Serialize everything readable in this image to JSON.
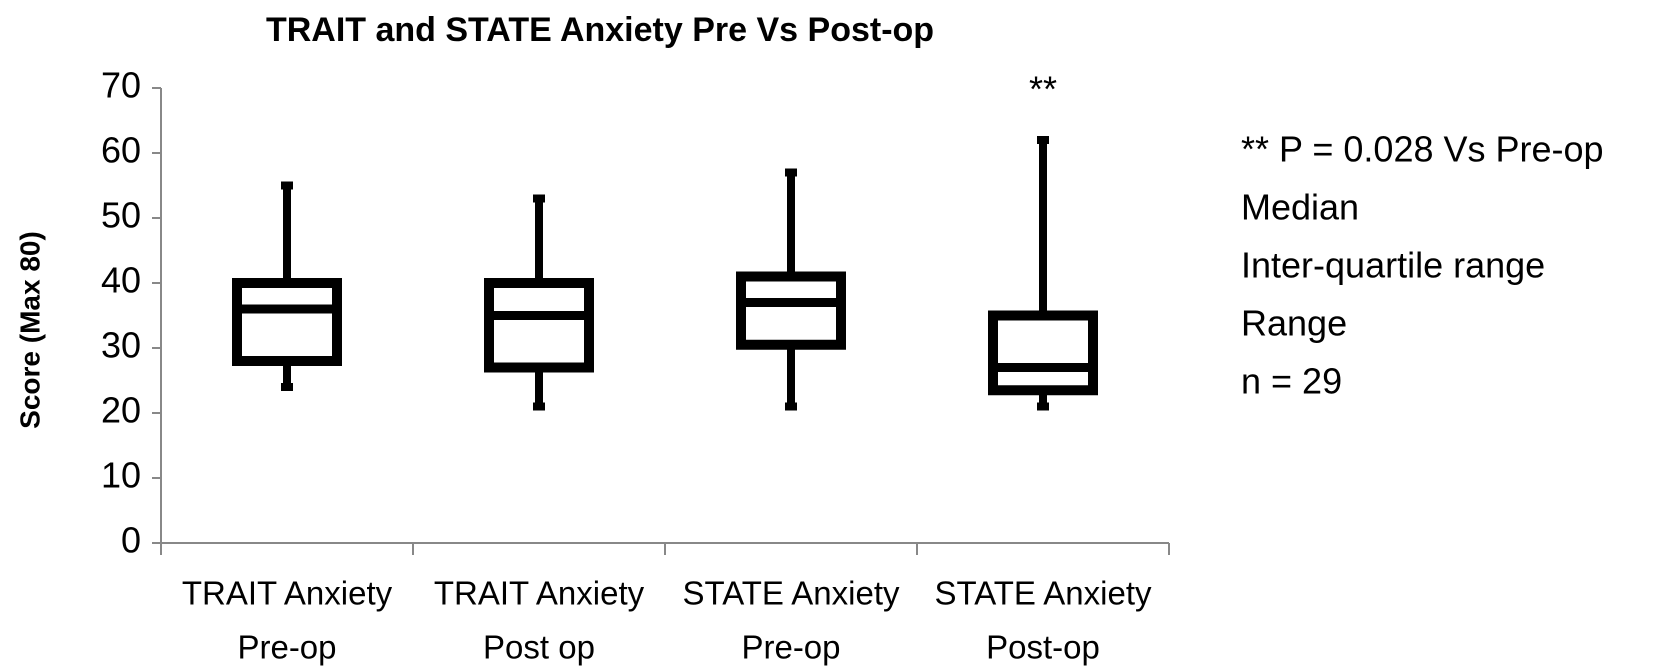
{
  "chart_data": {
    "type": "box",
    "title": "TRAIT and STATE Anxiety Pre Vs Post-op",
    "y_label": "Score (Max 80)",
    "categories": [
      [
        "TRAIT Anxiety",
        "Pre-op"
      ],
      [
        "TRAIT Anxiety",
        "Post op"
      ],
      [
        "STATE Anxiety",
        "Pre-op"
      ],
      [
        "STATE Anxiety",
        "Post-op"
      ]
    ],
    "series": [
      {
        "name": "Score",
        "color": "#000000",
        "min": [
          24,
          21,
          21,
          21
        ],
        "q1": [
          28,
          27,
          30.5,
          23.5
        ],
        "median": [
          36,
          35,
          37,
          27
        ],
        "q3": [
          40,
          40,
          41,
          35
        ],
        "max": [
          55,
          53,
          57,
          62
        ]
      }
    ],
    "ylim": [
      0,
      70
    ],
    "yticks": [
      0,
      10,
      20,
      30,
      40,
      50,
      60,
      70
    ],
    "grid": false,
    "annotations": [
      {
        "text": "**",
        "category": 3
      }
    ],
    "notes": [
      "** P = 0.028 Vs Pre-op",
      "Median",
      "Inter-quartile range",
      "Range",
      "n = 29"
    ]
  }
}
